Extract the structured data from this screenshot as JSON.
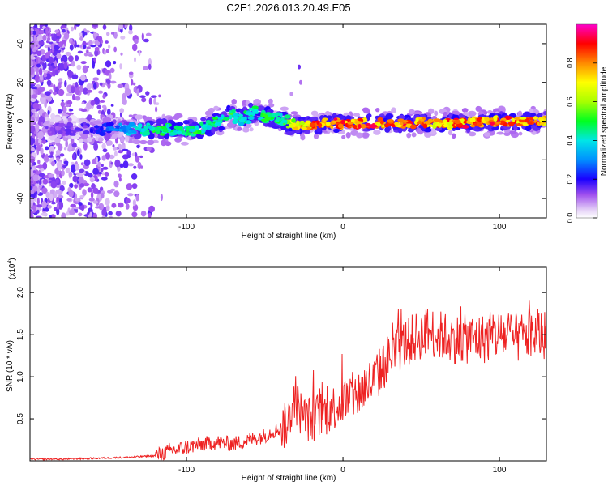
{
  "figure": {
    "title": "C2E1.2026.013.20.49.E05"
  },
  "chart_data": [
    {
      "type": "heatmap",
      "title": "C2E1.2026.013.20.49.E05",
      "xlabel": "Height of straight line (km)",
      "ylabel": "Frequency (Hz)",
      "xlim": [
        -200,
        130
      ],
      "ylim": [
        -50,
        50
      ],
      "xticks": [
        -100,
        0,
        100
      ],
      "yticks": [
        -40,
        -20,
        0,
        20,
        40
      ],
      "colorbar": {
        "label": "Normalized spectral amplitude",
        "range": [
          0,
          1
        ],
        "ticks": [
          "0.0",
          "0.2",
          "0.4",
          "0.6",
          "0.8"
        ],
        "tick_values": [
          0,
          0.2,
          0.4,
          0.6,
          0.8
        ]
      },
      "ridge": {
        "x": [
          -200,
          -180,
          -160,
          -140,
          -120,
          -110,
          -100,
          -90,
          -80,
          -75,
          -70,
          -65,
          -60,
          -55,
          -50,
          -45,
          -40,
          -35,
          -30,
          -25,
          -20,
          -10,
          0,
          20,
          40,
          60,
          80,
          100,
          120,
          130
        ],
        "freq": [
          -4,
          -4,
          -4,
          -4,
          -4,
          -5,
          -5,
          -4,
          0,
          2,
          3,
          1,
          3,
          5,
          3,
          2,
          1,
          -1,
          -2,
          -2,
          -2,
          -1,
          -1,
          -1,
          -1,
          -1,
          -1,
          0,
          0,
          0
        ],
        "peak_amplitude": [
          0.15,
          0.15,
          0.2,
          0.35,
          0.55,
          0.5,
          0.5,
          0.55,
          0.5,
          0.55,
          0.55,
          0.5,
          0.5,
          0.5,
          0.55,
          0.55,
          0.5,
          0.6,
          0.8,
          0.85,
          0.9,
          0.95,
          0.95,
          0.95,
          0.95,
          0.9,
          0.95,
          0.95,
          0.95,
          0.9
        ]
      }
    },
    {
      "type": "line",
      "xlabel": "Height of straight line (km)",
      "ylabel": "SNR (10 * v/v)",
      "y_multiplier": "(x10",
      "y_multiplier_exp": "4",
      "y_multiplier_close": ")",
      "xlim": [
        -200,
        130
      ],
      "ylim": [
        0,
        2.3
      ],
      "xticks": [
        -100,
        0,
        100
      ],
      "yticks": [
        0.5,
        1.0,
        1.5,
        2.0
      ],
      "ytick_labels": [
        "0.5",
        "1.0",
        "1.5",
        "2.0"
      ],
      "series": [
        {
          "name": "SNR",
          "color": "#ee2222",
          "x": [
            -200,
            -180,
            -160,
            -140,
            -120,
            -110,
            -100,
            -90,
            -80,
            -70,
            -60,
            -50,
            -45,
            -40,
            -35,
            -32,
            -30,
            -25,
            -20,
            -15,
            -10,
            -5,
            0,
            5,
            10,
            15,
            20,
            25,
            30,
            40,
            50,
            55,
            60,
            70,
            80,
            90,
            100,
            110,
            120,
            130
          ],
          "y": [
            0.02,
            0.02,
            0.03,
            0.04,
            0.06,
            0.12,
            0.16,
            0.2,
            0.22,
            0.2,
            0.25,
            0.3,
            0.35,
            0.38,
            0.45,
            0.7,
            0.7,
            0.5,
            0.5,
            0.55,
            0.58,
            0.65,
            0.7,
            0.75,
            0.8,
            0.9,
            0.95,
            1.1,
            1.25,
            1.4,
            1.5,
            1.55,
            1.5,
            1.45,
            1.45,
            1.45,
            1.5,
            1.45,
            1.5,
            1.5
          ]
        }
      ]
    }
  ],
  "colors": {
    "line": "#ee2222",
    "axis": "#000000"
  }
}
